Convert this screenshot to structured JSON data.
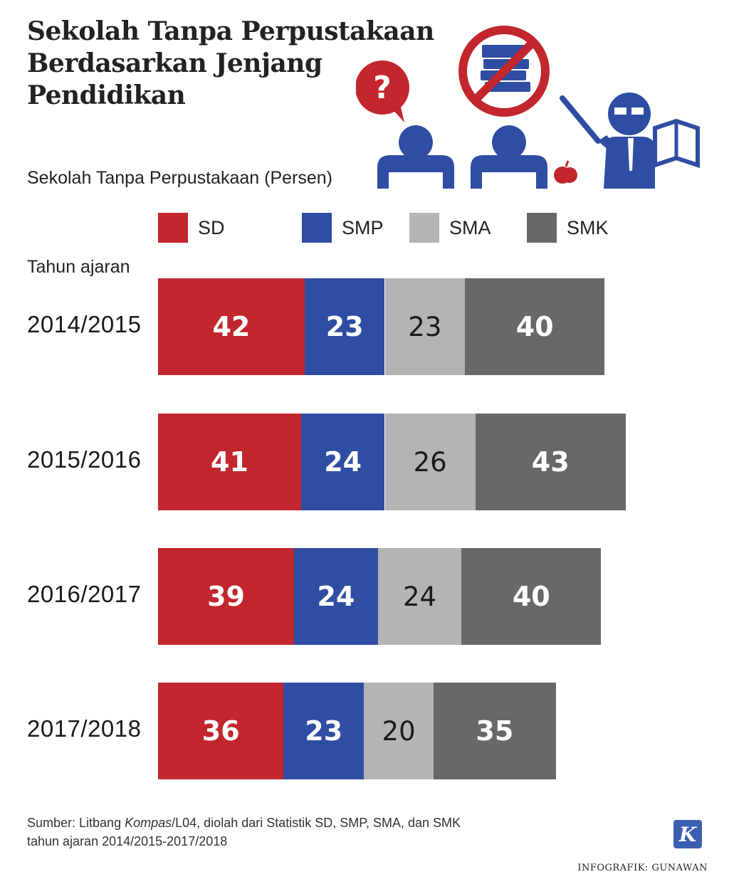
{
  "title_lines": [
    "Sekolah Tanpa Perpustakaan",
    "Berdasarkan Jenjang",
    "Pendidikan"
  ],
  "subtitle": "Sekolah Tanpa Perpustakaan (Persen)",
  "legend": [
    {
      "label": "SD",
      "color": "#c1272d"
    },
    {
      "label": "SMP",
      "color": "#2f4ea3"
    },
    {
      "label": "SMA",
      "color": "#b4b4b4"
    },
    {
      "label": "SMK",
      "color": "#686868"
    }
  ],
  "icons": [
    "question-bubble-icon",
    "student-icon",
    "no-books-icon",
    "apple-icon",
    "teacher-icon"
  ],
  "chart_data": {
    "type": "bar",
    "orientation": "horizontal-stacked",
    "y_title": "Tahun ajaran",
    "categories": [
      "2014/2015",
      "2015/2016",
      "2016/2017",
      "2017/2018"
    ],
    "series": [
      {
        "name": "SD",
        "color": "#c1272d",
        "values": [
          42,
          41,
          39,
          36
        ]
      },
      {
        "name": "SMP",
        "color": "#2f4ea3",
        "values": [
          23,
          24,
          24,
          23
        ]
      },
      {
        "name": "SMA",
        "color": "#b4b4b4",
        "values": [
          23,
          26,
          24,
          20
        ]
      },
      {
        "name": "SMK",
        "color": "#686868",
        "values": [
          40,
          43,
          40,
          35
        ]
      }
    ],
    "grid": false,
    "legend_position": "top"
  },
  "source_lines": [
    "Sumber: Litbang Kompas/L04, diolah dari Statistik SD, SMP, SMA, dan SMK",
    "tahun ajaran  2014/2015-2017/2018"
  ],
  "logo_letter": "K",
  "credit": "INFOGRAFIK: GUNAWAN"
}
